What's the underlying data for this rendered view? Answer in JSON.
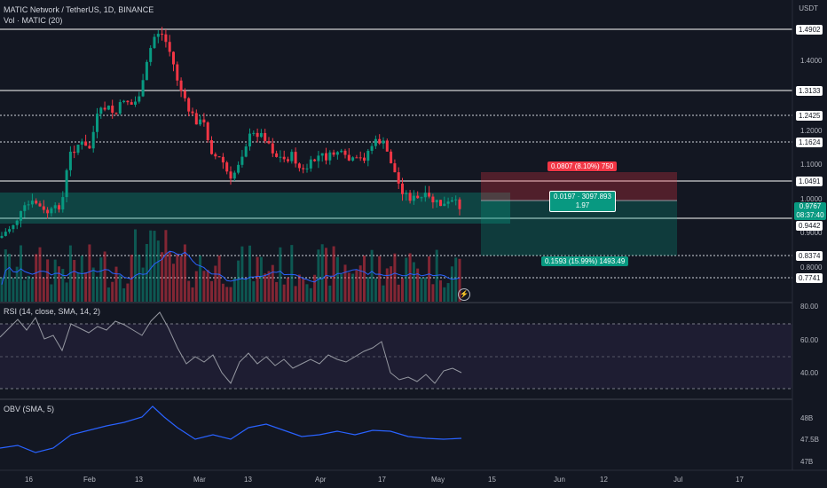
{
  "legend": {
    "symbol": "MATIC Network / TetherUS, 1D, BINANCE",
    "volume": "Vol · MATIC (20)",
    "rsi": "RSI (14, close, SMA, 14, 2)",
    "obv": "OBV (SMA, 5)"
  },
  "currency": "USDT",
  "axis_ticks": [
    "1.4000",
    "1.2000",
    "1.1000",
    "1.0000",
    "0.9000",
    "0.8000"
  ],
  "rsi_ticks": [
    "80.00",
    "60.00",
    "40.00"
  ],
  "obv_ticks": [
    "48B",
    "47.5B",
    "47B"
  ],
  "price_levels": [
    "1.4902",
    "1.3133",
    "1.2425",
    "1.1624",
    "1.0491",
    "0.9442",
    "0.8374",
    "0.7741"
  ],
  "current_price": {
    "value": "0.9767",
    "countdown": "08:37:40"
  },
  "position": {
    "stop_label": "0.0807 (8.10%) 750",
    "center_label": "0.0197 · 3097.893",
    "center_ratio": "1.97",
    "target_label": "0.1593 (15.99%) 1493.49"
  },
  "dates": [
    "16",
    "Feb",
    "13",
    "Mar",
    "13",
    "Apr",
    "17",
    "May",
    "15",
    "Jun",
    "12",
    "Jul",
    "17"
  ],
  "colors": {
    "up": "#089981",
    "down": "#f23645",
    "volume_ma": "#2962ff",
    "rsi": "#9598a1",
    "obv": "#2962ff",
    "background": "#131722"
  },
  "icons": {
    "flash": "lightning-icon"
  }
}
